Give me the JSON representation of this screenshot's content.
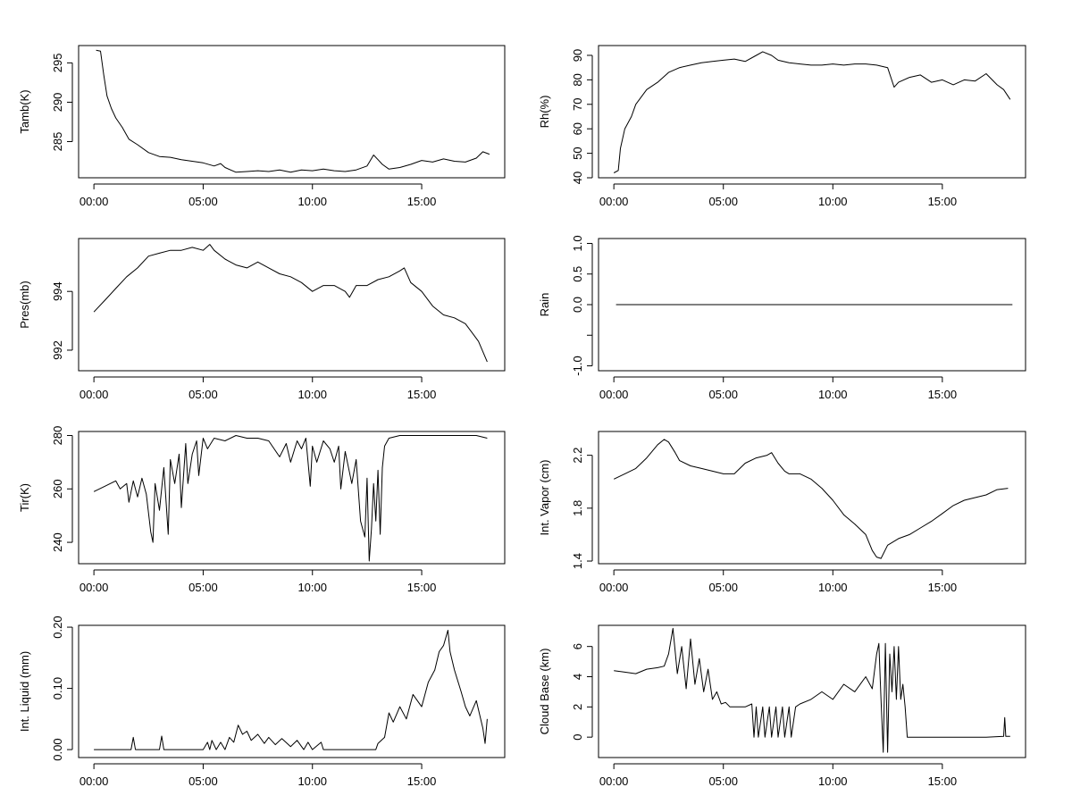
{
  "chart_data": [
    {
      "type": "line",
      "ylabel": "Tamb(K)",
      "x_ticks": [
        "00:00",
        "05:00",
        "10:00",
        "15:00"
      ],
      "x_tick_hours": [
        0,
        5,
        10,
        15
      ],
      "xlim": [
        -0.7,
        18.8
      ],
      "ylim": [
        280.4,
        297.2
      ],
      "y_ticks": [
        285,
        290,
        295
      ],
      "y_tick_labels": [
        "285",
        "290",
        "295"
      ],
      "series": [
        {
          "x": [
            0.1,
            0.3,
            0.45,
            0.6,
            0.8,
            1.0,
            1.3,
            1.6,
            2.0,
            2.5,
            3.0,
            3.5,
            4.0,
            4.5,
            5.0,
            5.5,
            5.8,
            6.0,
            6.5,
            7.0,
            7.5,
            8.0,
            8.5,
            9.0,
            9.5,
            10.0,
            10.5,
            11.0,
            11.5,
            12.0,
            12.5,
            12.8,
            13.0,
            13.2,
            13.5,
            14.0,
            14.5,
            15.0,
            15.5,
            16.0,
            16.5,
            17.0,
            17.5,
            17.8,
            18.1
          ],
          "y": [
            296.6,
            296.5,
            293.5,
            290.8,
            289.2,
            288.0,
            286.8,
            285.3,
            284.6,
            283.6,
            283.1,
            283.0,
            282.7,
            282.5,
            282.3,
            281.9,
            282.2,
            281.7,
            281.1,
            281.2,
            281.3,
            281.2,
            281.4,
            281.1,
            281.4,
            281.3,
            281.5,
            281.3,
            281.2,
            281.4,
            281.9,
            283.3,
            282.7,
            282.1,
            281.5,
            281.7,
            282.1,
            282.6,
            282.4,
            282.8,
            282.5,
            282.4,
            282.9,
            283.7,
            283.4
          ]
        }
      ]
    },
    {
      "type": "line",
      "ylabel": "Rh(%)",
      "x_ticks": [
        "00:00",
        "05:00",
        "10:00",
        "15:00"
      ],
      "x_tick_hours": [
        0,
        5,
        10,
        15
      ],
      "xlim": [
        -0.7,
        18.8
      ],
      "ylim": [
        40,
        94
      ],
      "y_ticks": [
        40,
        50,
        60,
        70,
        80,
        90
      ],
      "y_tick_labels": [
        "40",
        "50",
        "60",
        "70",
        "80",
        "90"
      ],
      "series": [
        {
          "x": [
            0.0,
            0.2,
            0.3,
            0.5,
            0.8,
            1.0,
            1.5,
            2.0,
            2.5,
            3.0,
            3.5,
            4.0,
            4.5,
            5.0,
            5.5,
            6.0,
            6.5,
            6.8,
            7.2,
            7.5,
            8.0,
            8.5,
            9.0,
            9.5,
            10.0,
            10.5,
            11.0,
            11.5,
            12.0,
            12.5,
            12.8,
            13.0,
            13.5,
            14.0,
            14.5,
            15.0,
            15.5,
            16.0,
            16.5,
            17.0,
            17.5,
            17.8,
            18.1
          ],
          "y": [
            42.0,
            43.0,
            52.0,
            60.0,
            65.0,
            70.0,
            76.0,
            79.0,
            83.0,
            85.0,
            86.0,
            87.0,
            87.5,
            88.0,
            88.5,
            87.5,
            90.0,
            91.5,
            90.0,
            88.0,
            87.0,
            86.5,
            86.0,
            86.0,
            86.5,
            86.0,
            86.5,
            86.5,
            86.0,
            85.0,
            77.0,
            79.0,
            81.0,
            82.0,
            79.0,
            80.0,
            78.0,
            80.0,
            79.5,
            82.5,
            78.0,
            76.0,
            72.0
          ]
        }
      ]
    },
    {
      "type": "line",
      "ylabel": "Pres(mb)",
      "x_ticks": [
        "00:00",
        "05:00",
        "10:00",
        "15:00"
      ],
      "x_tick_hours": [
        0,
        5,
        10,
        15
      ],
      "xlim": [
        -0.7,
        18.8
      ],
      "ylim": [
        991.3,
        995.8
      ],
      "y_ticks": [
        992,
        994
      ],
      "y_tick_labels": [
        "992",
        "994"
      ],
      "series": [
        {
          "x": [
            0.0,
            0.5,
            1.0,
            1.5,
            2.0,
            2.5,
            3.0,
            3.5,
            4.0,
            4.5,
            5.0,
            5.3,
            5.5,
            6.0,
            6.5,
            7.0,
            7.5,
            8.0,
            8.5,
            9.0,
            9.5,
            10.0,
            10.5,
            11.0,
            11.5,
            11.7,
            12.0,
            12.5,
            13.0,
            13.5,
            14.0,
            14.2,
            14.5,
            15.0,
            15.5,
            16.0,
            16.5,
            17.0,
            17.3,
            17.6,
            18.0
          ],
          "y": [
            993.3,
            993.7,
            994.1,
            994.5,
            994.8,
            995.2,
            995.3,
            995.4,
            995.4,
            995.5,
            995.4,
            995.6,
            995.4,
            995.1,
            994.9,
            994.8,
            995.0,
            994.8,
            994.6,
            994.5,
            994.3,
            994.0,
            994.2,
            994.2,
            994.0,
            993.8,
            994.2,
            994.2,
            994.4,
            994.5,
            994.7,
            994.8,
            994.3,
            994.0,
            993.5,
            993.2,
            993.1,
            992.9,
            992.6,
            992.3,
            991.6
          ]
        }
      ]
    },
    {
      "type": "line",
      "ylabel": "Rain",
      "x_ticks": [
        "00:00",
        "05:00",
        "10:00",
        "15:00"
      ],
      "x_tick_hours": [
        0,
        5,
        10,
        15
      ],
      "xlim": [
        -0.7,
        18.8
      ],
      "ylim": [
        -1.08,
        1.08
      ],
      "y_ticks": [
        -1.0,
        -0.5,
        0.0,
        0.5,
        1.0
      ],
      "y_tick_labels": [
        "-1.0",
        "",
        "0.0",
        "0.5",
        "1.0"
      ],
      "series": [
        {
          "x": [
            0.1,
            18.2
          ],
          "y": [
            0.0,
            0.0
          ]
        }
      ]
    },
    {
      "type": "line",
      "ylabel": "Tir(K)",
      "x_ticks": [
        "00:00",
        "05:00",
        "10:00",
        "15:00"
      ],
      "x_tick_hours": [
        0,
        5,
        10,
        15
      ],
      "xlim": [
        -0.7,
        18.8
      ],
      "ylim": [
        232,
        281.5
      ],
      "y_ticks": [
        240,
        260,
        280
      ],
      "y_tick_labels": [
        "240",
        "260",
        "280"
      ],
      "series": [
        {
          "x": [
            0.0,
            0.5,
            1.0,
            1.2,
            1.5,
            1.6,
            1.8,
            2.0,
            2.2,
            2.4,
            2.6,
            2.7,
            2.8,
            3.0,
            3.2,
            3.4,
            3.5,
            3.7,
            3.9,
            4.0,
            4.2,
            4.3,
            4.5,
            4.7,
            4.8,
            5.0,
            5.2,
            5.5,
            6.0,
            6.5,
            7.0,
            7.5,
            8.0,
            8.5,
            8.8,
            9.0,
            9.3,
            9.5,
            9.7,
            9.9,
            10.0,
            10.2,
            10.5,
            10.8,
            11.0,
            11.2,
            11.3,
            11.5,
            11.8,
            12.0,
            12.2,
            12.4,
            12.5,
            12.6,
            12.7,
            12.8,
            12.9,
            13.0,
            13.1,
            13.2,
            13.3,
            13.5,
            14.0,
            15.0,
            16.0,
            17.0,
            17.5,
            18.0
          ],
          "y": [
            259,
            261,
            263,
            260,
            262,
            255,
            263,
            257,
            264,
            258,
            244,
            240,
            262,
            252,
            268,
            243,
            271,
            262,
            273,
            253,
            277,
            262,
            273,
            278,
            265,
            279,
            275,
            279,
            278,
            280,
            279,
            279,
            278,
            272,
            277,
            270,
            278,
            275,
            279,
            261,
            276,
            270,
            278,
            275,
            270,
            276,
            260,
            274,
            262,
            271,
            248,
            242,
            264,
            233,
            245,
            262,
            248,
            267,
            243,
            268,
            276,
            279,
            280,
            280,
            280,
            280,
            280,
            279
          ]
        }
      ]
    },
    {
      "type": "line",
      "ylabel": "Int. Vapor (cm)",
      "x_ticks": [
        "00:00",
        "05:00",
        "10:00",
        "15:00"
      ],
      "x_tick_hours": [
        0,
        5,
        10,
        15
      ],
      "xlim": [
        -0.7,
        18.8
      ],
      "ylim": [
        1.38,
        2.38
      ],
      "y_ticks": [
        1.4,
        1.8,
        2.2
      ],
      "y_tick_labels": [
        "1.4",
        "1.8",
        "2.2"
      ],
      "series": [
        {
          "x": [
            0.0,
            0.5,
            1.0,
            1.5,
            2.0,
            2.3,
            2.5,
            2.8,
            3.0,
            3.5,
            4.0,
            4.5,
            5.0,
            5.5,
            6.0,
            6.5,
            7.0,
            7.2,
            7.5,
            7.8,
            8.0,
            8.5,
            9.0,
            9.5,
            10.0,
            10.5,
            11.0,
            11.5,
            11.8,
            12.0,
            12.2,
            12.5,
            13.0,
            13.5,
            14.0,
            14.5,
            15.0,
            15.5,
            16.0,
            16.5,
            17.0,
            17.5,
            18.0
          ],
          "y": [
            2.02,
            2.06,
            2.1,
            2.18,
            2.28,
            2.32,
            2.3,
            2.22,
            2.16,
            2.12,
            2.1,
            2.08,
            2.06,
            2.06,
            2.14,
            2.18,
            2.2,
            2.22,
            2.14,
            2.08,
            2.06,
            2.06,
            2.02,
            1.95,
            1.86,
            1.75,
            1.68,
            1.6,
            1.48,
            1.43,
            1.42,
            1.52,
            1.57,
            1.6,
            1.65,
            1.7,
            1.76,
            1.82,
            1.86,
            1.88,
            1.9,
            1.94,
            1.95
          ]
        }
      ]
    },
    {
      "type": "line",
      "ylabel": "Int. Liquid (mm)",
      "x_ticks": [
        "00:00",
        "05:00",
        "10:00",
        "15:00"
      ],
      "x_tick_hours": [
        0,
        5,
        10,
        15
      ],
      "xlim": [
        -0.7,
        18.8
      ],
      "ylim": [
        -0.013,
        0.203
      ],
      "y_ticks": [
        0.0,
        0.1,
        0.2
      ],
      "y_tick_labels": [
        "0.00",
        "0.10",
        "0.20"
      ],
      "series": [
        {
          "x": [
            0.0,
            1.7,
            1.8,
            1.9,
            2.0,
            3.0,
            3.1,
            3.2,
            3.3,
            5.0,
            5.2,
            5.3,
            5.4,
            5.6,
            5.8,
            6.0,
            6.2,
            6.4,
            6.6,
            6.8,
            7.0,
            7.2,
            7.5,
            7.8,
            8.0,
            8.3,
            8.6,
            9.0,
            9.3,
            9.6,
            9.8,
            10.0,
            10.4,
            10.5,
            10.6,
            11.0,
            12.0,
            12.9,
            13.0,
            13.3,
            13.5,
            13.7,
            14.0,
            14.3,
            14.6,
            15.0,
            15.3,
            15.6,
            15.8,
            16.0,
            16.2,
            16.3,
            16.5,
            16.8,
            17.0,
            17.2,
            17.5,
            17.8,
            17.9,
            18.0
          ],
          "y": [
            0.0,
            0.0,
            0.02,
            0.0,
            0.0,
            0.0,
            0.022,
            0.0,
            0.0,
            0.0,
            0.012,
            0.0,
            0.015,
            0.0,
            0.012,
            0.0,
            0.02,
            0.012,
            0.04,
            0.025,
            0.03,
            0.015,
            0.025,
            0.01,
            0.02,
            0.008,
            0.018,
            0.005,
            0.015,
            0.0,
            0.012,
            0.0,
            0.012,
            0.0,
            0.0,
            0.0,
            0.0,
            0.0,
            0.01,
            0.02,
            0.06,
            0.045,
            0.07,
            0.05,
            0.09,
            0.07,
            0.11,
            0.13,
            0.16,
            0.17,
            0.195,
            0.16,
            0.13,
            0.095,
            0.07,
            0.055,
            0.08,
            0.035,
            0.01,
            0.05
          ]
        }
      ]
    },
    {
      "type": "line",
      "ylabel": "Cloud Base (km)",
      "x_ticks": [
        "00:00",
        "05:00",
        "10:00",
        "15:00"
      ],
      "x_tick_hours": [
        0,
        5,
        10,
        15
      ],
      "xlim": [
        -0.7,
        18.8
      ],
      "ylim": [
        -1.35,
        7.4
      ],
      "y_ticks": [
        0,
        2,
        4,
        6
      ],
      "y_tick_labels": [
        "0",
        "2",
        "4",
        "6"
      ],
      "series": [
        {
          "x": [
            0.0,
            0.5,
            1.0,
            1.5,
            2.0,
            2.3,
            2.5,
            2.7,
            2.9,
            3.1,
            3.3,
            3.5,
            3.7,
            3.9,
            4.1,
            4.3,
            4.5,
            4.7,
            4.9,
            5.1,
            5.3,
            5.5,
            6.0,
            6.3,
            6.4,
            6.5,
            6.6,
            6.8,
            6.9,
            7.1,
            7.2,
            7.4,
            7.5,
            7.7,
            7.8,
            8.0,
            8.1,
            8.3,
            8.5,
            9.0,
            9.5,
            10.0,
            10.5,
            11.0,
            11.5,
            11.8,
            12.0,
            12.1,
            12.2,
            12.3,
            12.4,
            12.5,
            12.6,
            12.7,
            12.8,
            12.9,
            13.0,
            13.1,
            13.2,
            13.3,
            13.4,
            14.0,
            15.0,
            16.0,
            17.0,
            17.8,
            17.85,
            17.9,
            18.1
          ],
          "y": [
            4.4,
            4.3,
            4.2,
            4.5,
            4.6,
            4.7,
            5.5,
            7.2,
            4.2,
            6.0,
            3.2,
            6.5,
            3.5,
            5.2,
            3.0,
            4.5,
            2.5,
            3.0,
            2.2,
            2.3,
            2.0,
            2.0,
            2.0,
            2.2,
            0.0,
            2.0,
            0.0,
            2.0,
            0.0,
            2.0,
            0.0,
            2.0,
            0.0,
            2.0,
            0.0,
            2.0,
            0.0,
            2.0,
            2.2,
            2.5,
            3.0,
            2.5,
            3.5,
            3.0,
            4.0,
            3.2,
            5.5,
            6.2,
            2.5,
            -1.0,
            6.2,
            -1.0,
            5.5,
            3.0,
            6.0,
            2.5,
            6.0,
            2.5,
            3.5,
            2.0,
            0.0,
            0.0,
            0.0,
            0.0,
            0.0,
            0.05,
            1.3,
            0.05,
            0.05
          ]
        }
      ]
    }
  ]
}
